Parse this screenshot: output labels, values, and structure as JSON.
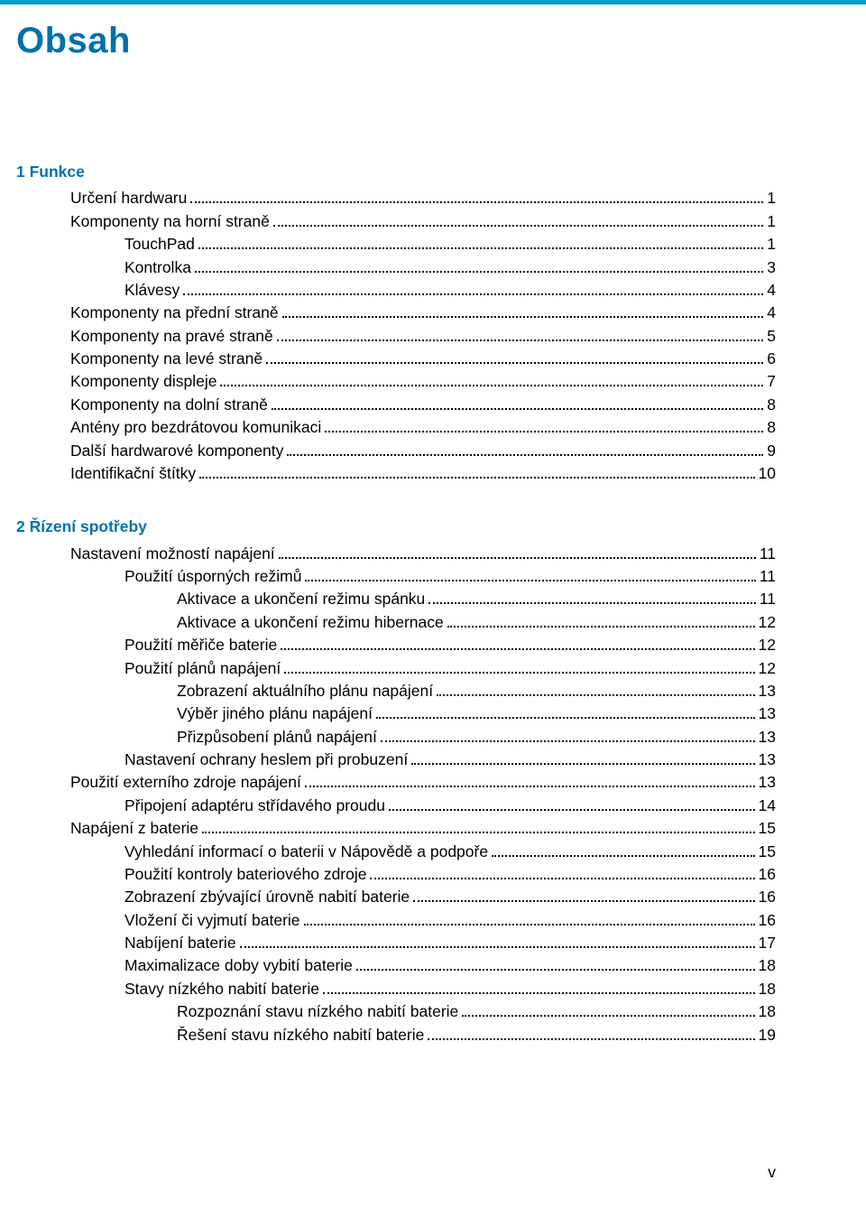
{
  "colors": {
    "rule": "#009fc4",
    "heading": "#0071ad",
    "text": "#000000",
    "background": "#ffffff"
  },
  "title": "Obsah",
  "footer_page": "v",
  "sections": [
    {
      "heading": "1  Funkce",
      "entries": [
        {
          "indent": 1,
          "label": "Určení hardwaru",
          "page": "1"
        },
        {
          "indent": 1,
          "label": "Komponenty na horní straně",
          "page": "1"
        },
        {
          "indent": 2,
          "label": "TouchPad",
          "page": "1"
        },
        {
          "indent": 2,
          "label": "Kontrolka",
          "page": "3"
        },
        {
          "indent": 2,
          "label": "Klávesy",
          "page": "4"
        },
        {
          "indent": 1,
          "label": "Komponenty na přední straně",
          "page": "4"
        },
        {
          "indent": 1,
          "label": "Komponenty na pravé straně",
          "page": "5"
        },
        {
          "indent": 1,
          "label": "Komponenty na levé straně",
          "page": "6"
        },
        {
          "indent": 1,
          "label": "Komponenty displeje",
          "page": "7"
        },
        {
          "indent": 1,
          "label": "Komponenty na dolní straně",
          "page": "8"
        },
        {
          "indent": 1,
          "label": "Antény pro bezdrátovou komunikaci",
          "page": "8"
        },
        {
          "indent": 1,
          "label": "Další hardwarové komponenty",
          "page": "9"
        },
        {
          "indent": 1,
          "label": "Identifikační štítky",
          "page": "10"
        }
      ]
    },
    {
      "heading": "2  Řízení spotřeby",
      "entries": [
        {
          "indent": 1,
          "label": "Nastavení možností napájení",
          "page": "11"
        },
        {
          "indent": 2,
          "label": "Použití úsporných režimů",
          "page": "11"
        },
        {
          "indent": 3,
          "label": "Aktivace a ukončení režimu spánku",
          "page": "11"
        },
        {
          "indent": 3,
          "label": "Aktivace a ukončení režimu hibernace",
          "page": "12"
        },
        {
          "indent": 2,
          "label": "Použití měřiče baterie",
          "page": "12"
        },
        {
          "indent": 2,
          "label": "Použití plánů napájení",
          "page": "12"
        },
        {
          "indent": 3,
          "label": "Zobrazení aktuálního plánu napájení",
          "page": "13"
        },
        {
          "indent": 3,
          "label": "Výběr jiného plánu napájení",
          "page": "13"
        },
        {
          "indent": 3,
          "label": "Přizpůsobení plánů napájení",
          "page": "13"
        },
        {
          "indent": 2,
          "label": "Nastavení ochrany heslem při probuzení",
          "page": "13"
        },
        {
          "indent": 1,
          "label": "Použití externího zdroje napájení",
          "page": "13"
        },
        {
          "indent": 2,
          "label": "Připojení adaptéru střídavého proudu",
          "page": "14"
        },
        {
          "indent": 1,
          "label": "Napájení z baterie",
          "page": "15"
        },
        {
          "indent": 2,
          "label": "Vyhledání informací o baterii v Nápovědě a podpoře",
          "page": "15"
        },
        {
          "indent": 2,
          "label": "Použití kontroly bateriového zdroje",
          "page": "16"
        },
        {
          "indent": 2,
          "label": "Zobrazení zbývající úrovně nabití baterie",
          "page": "16"
        },
        {
          "indent": 2,
          "label": "Vložení či vyjmutí baterie",
          "page": "16"
        },
        {
          "indent": 2,
          "label": "Nabíjení baterie",
          "page": "17"
        },
        {
          "indent": 2,
          "label": "Maximalizace doby vybití baterie",
          "page": "18"
        },
        {
          "indent": 2,
          "label": "Stavy nízkého nabití baterie",
          "page": "18"
        },
        {
          "indent": 3,
          "label": "Rozpoznání stavu nízkého nabití baterie",
          "page": "18"
        },
        {
          "indent": 3,
          "label": "Řešení stavu nízkého nabití baterie",
          "page": "19"
        }
      ]
    }
  ]
}
